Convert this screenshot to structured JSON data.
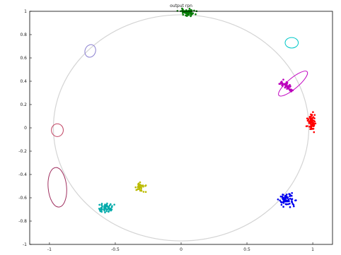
{
  "chart_data": {
    "type": "scatter",
    "title": "output rpn",
    "xlabel": "",
    "ylabel": "",
    "xlim": [
      -1.15,
      1.15
    ],
    "ylim": [
      -1.0,
      1.0
    ],
    "xticks": [
      -1,
      -0.5,
      0,
      0.5,
      1
    ],
    "xtick_labels": [
      "-1",
      "-0.5",
      "0",
      "0.5",
      "1"
    ],
    "yticks": [
      -1,
      -0.8,
      -0.6,
      -0.4,
      -0.2,
      0,
      0.2,
      0.4,
      0.6,
      0.8,
      1
    ],
    "ytick_labels": [
      "-1",
      "-0.8",
      "-0.6",
      "-0.4",
      "-0.2",
      "0",
      "0.2",
      "0.4",
      "0.6",
      "0.8",
      "1"
    ],
    "grid": false,
    "legend": "none",
    "reference_circle": {
      "center": [
        0,
        0
      ],
      "radius": 0.97,
      "color": "#d4d4d4"
    },
    "clusters": [
      {
        "color": "#007a00",
        "center": [
          0.05,
          0.99
        ],
        "spread": [
          0.03,
          0.015
        ],
        "angle": 0,
        "n": 60
      },
      {
        "color": "#ff0000",
        "center": [
          0.99,
          0.05
        ],
        "spread": [
          0.015,
          0.035
        ],
        "angle": 0,
        "n": 70
      },
      {
        "color": "#0000ee",
        "center": [
          0.81,
          -0.62
        ],
        "spread": [
          0.03,
          0.025
        ],
        "angle": 0,
        "n": 70
      },
      {
        "color": "#bb00bb",
        "center": [
          0.8,
          0.36
        ],
        "spread": [
          0.035,
          0.012
        ],
        "angle": -35,
        "n": 45
      },
      {
        "color": "#bbbb00",
        "center": [
          -0.31,
          -0.51
        ],
        "spread": [
          0.02,
          0.02
        ],
        "angle": 0,
        "n": 35
      },
      {
        "color": "#00aaaa",
        "center": [
          -0.58,
          -0.69
        ],
        "spread": [
          0.03,
          0.02
        ],
        "angle": 0,
        "n": 55
      }
    ],
    "ellipses": [
      {
        "color": "#00c8c8",
        "center": [
          0.84,
          0.73
        ],
        "radii": [
          0.05,
          0.045
        ],
        "angle": 0
      },
      {
        "color": "#c000c0",
        "center": [
          0.85,
          0.38
        ],
        "radii": [
          0.14,
          0.045
        ],
        "angle": -40
      },
      {
        "color": "#8a7fd0",
        "center": [
          -0.69,
          0.66
        ],
        "radii": [
          0.04,
          0.055
        ],
        "angle": 20
      },
      {
        "color": "#c04060",
        "center": [
          -0.94,
          -0.02
        ],
        "radii": [
          0.045,
          0.055
        ],
        "angle": 0
      },
      {
        "color": "#a03060",
        "center": [
          -0.94,
          -0.51
        ],
        "radii": [
          0.07,
          0.17
        ],
        "angle": -5
      }
    ]
  }
}
